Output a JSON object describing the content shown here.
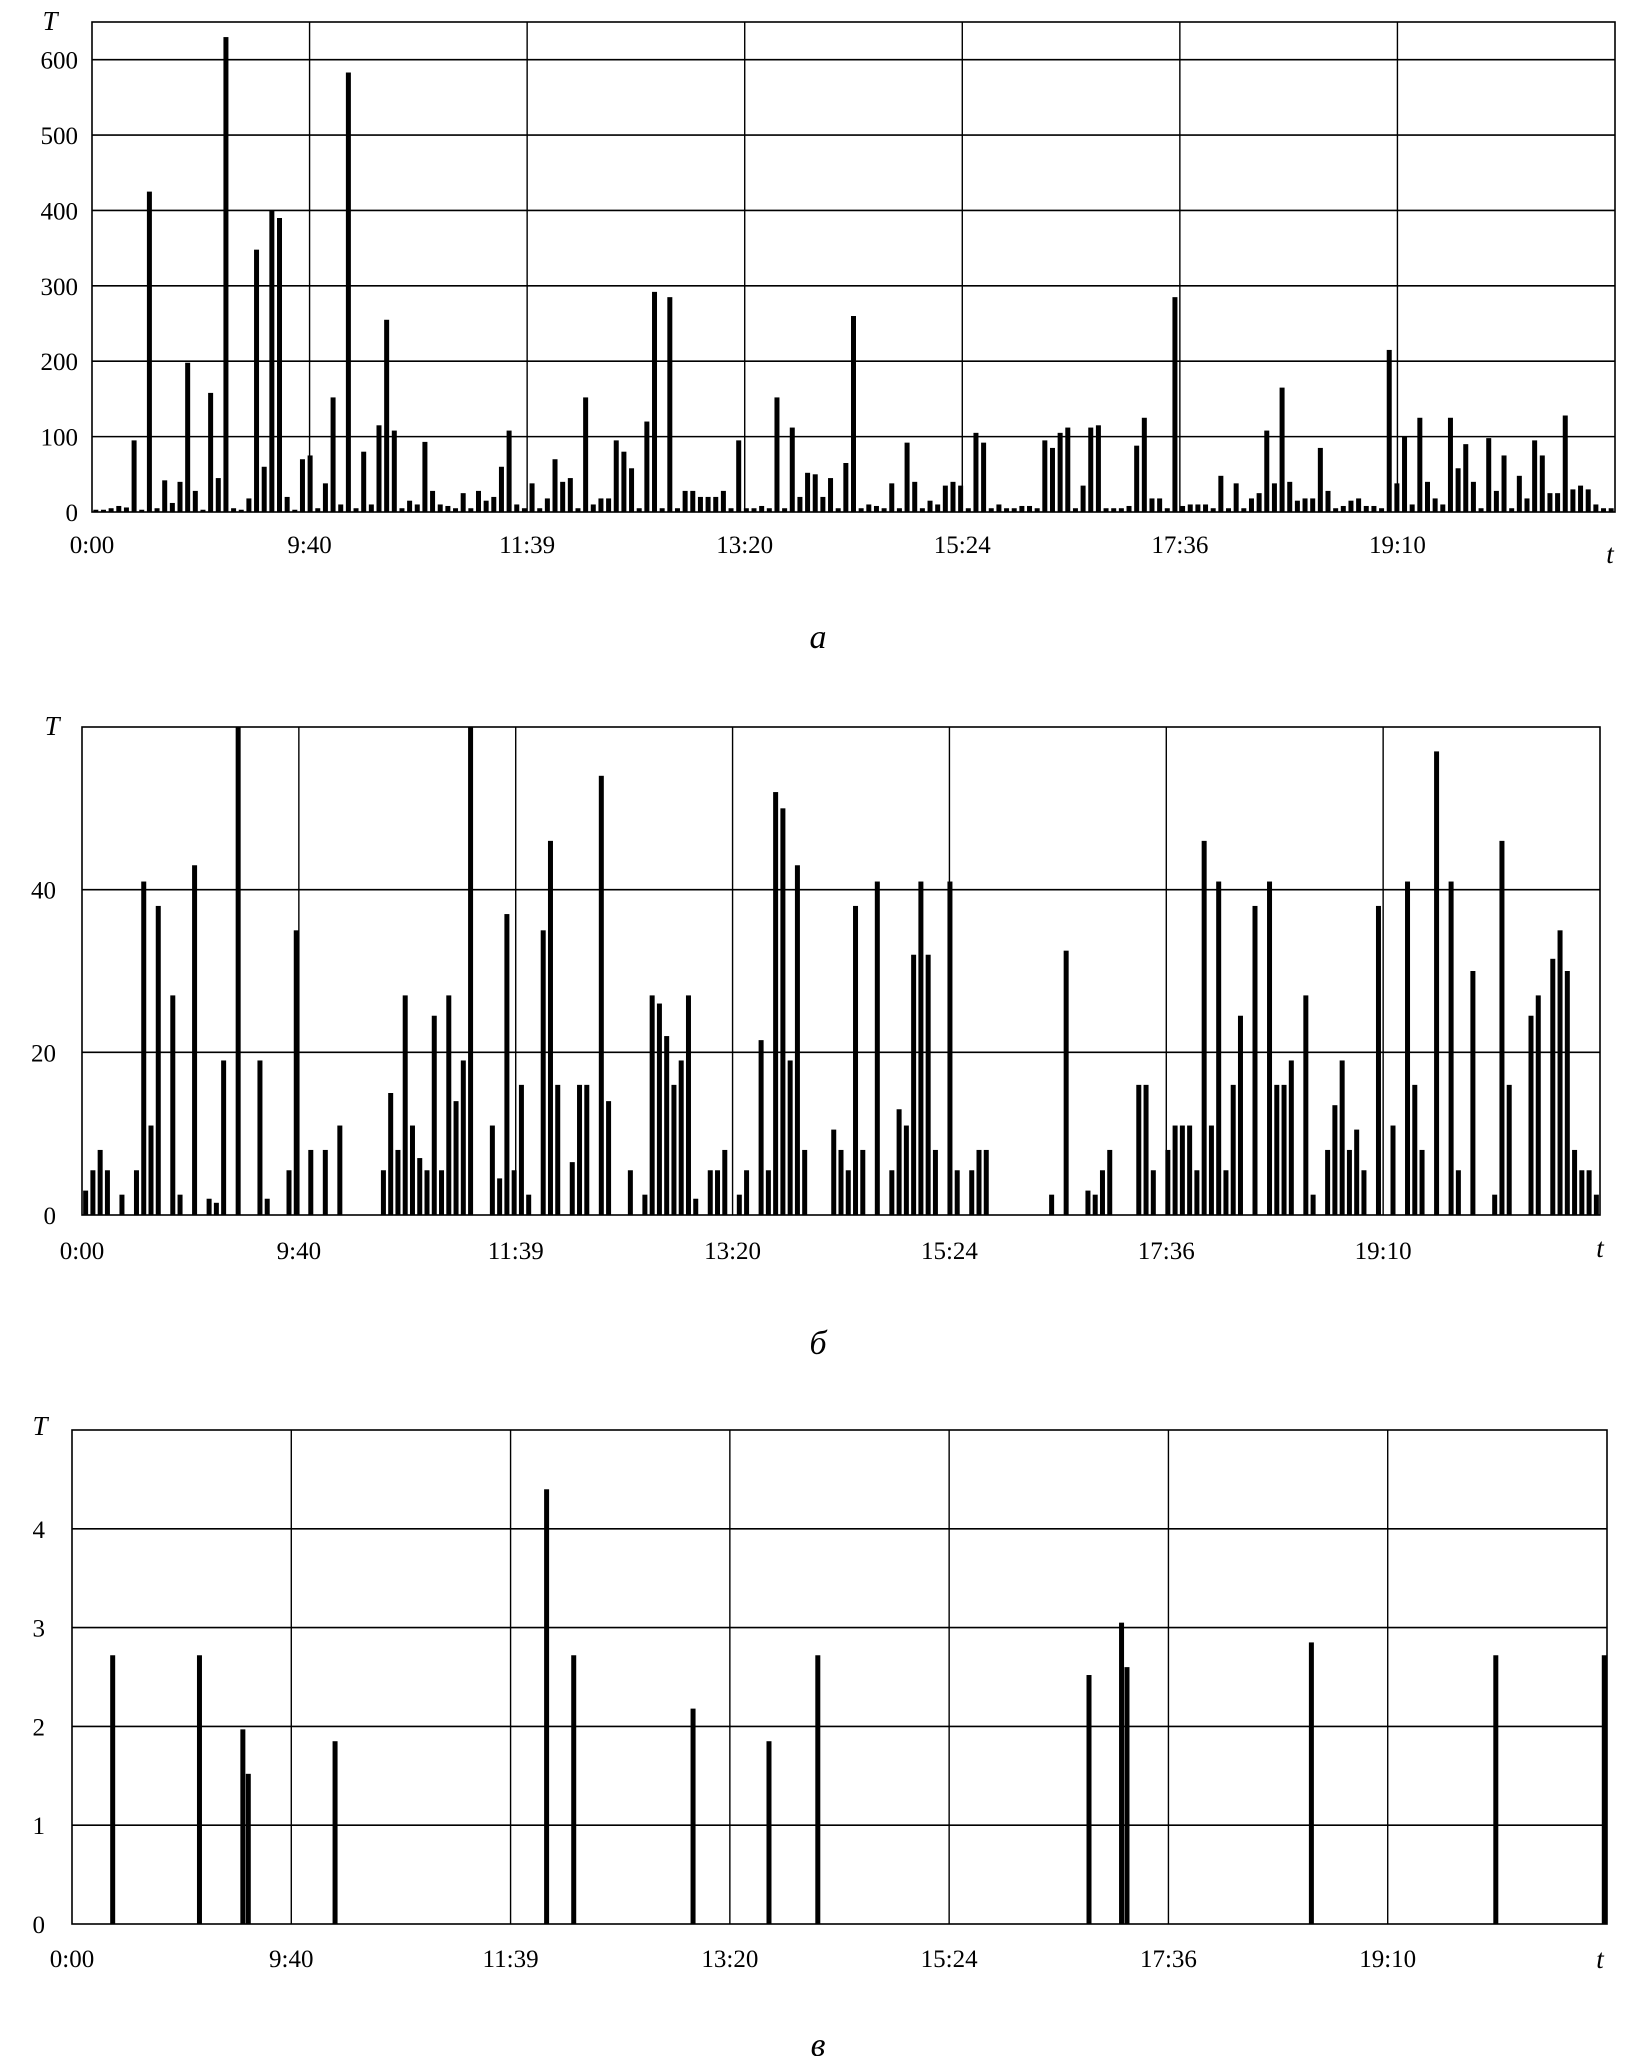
{
  "chart_data": [
    {
      "type": "bar",
      "caption": "а",
      "ylabel": "T",
      "xlabel": "t",
      "ylim": [
        0,
        650
      ],
      "yticks": [
        0,
        100,
        200,
        300,
        400,
        500,
        600
      ],
      "xticks": [
        "0:00",
        "9:40",
        "11:39",
        "13:20",
        "15:24",
        "17:36",
        "19:10"
      ],
      "grid": true,
      "values": [
        3,
        3,
        5,
        8,
        6,
        95,
        3,
        425,
        5,
        42,
        12,
        40,
        198,
        28,
        3,
        158,
        45,
        630,
        5,
        3,
        18,
        348,
        60,
        400,
        390,
        20,
        3,
        70,
        75,
        5,
        38,
        152,
        10,
        583,
        5,
        80,
        10,
        115,
        255,
        108,
        5,
        15,
        10,
        93,
        28,
        10,
        8,
        5,
        25,
        5,
        28,
        15,
        20,
        60,
        108,
        10,
        5,
        38,
        5,
        18,
        70,
        40,
        45,
        5,
        152,
        10,
        18,
        18,
        95,
        80,
        58,
        5,
        120,
        292,
        5,
        285,
        5,
        28,
        28,
        20,
        20,
        20,
        28,
        5,
        95,
        5,
        5,
        8,
        5,
        152,
        5,
        112,
        20,
        52,
        50,
        20,
        45,
        5,
        65,
        260,
        5,
        10,
        8,
        5,
        38,
        5,
        92,
        40,
        5,
        15,
        10,
        35,
        40,
        35,
        5,
        105,
        92,
        5,
        10,
        5,
        5,
        8,
        8,
        5,
        95,
        85,
        105,
        112,
        5,
        35,
        112,
        115,
        5,
        5,
        5,
        8,
        88,
        125,
        18,
        18,
        5,
        285,
        8,
        10,
        10,
        10,
        5,
        48,
        5,
        38,
        5,
        18,
        25,
        108,
        38,
        165,
        40,
        15,
        18,
        18,
        85,
        28,
        5,
        8,
        15,
        18,
        8,
        8,
        5,
        215,
        38,
        100,
        10,
        125,
        40,
        18,
        10,
        125,
        58,
        90,
        40,
        5,
        98,
        28,
        75,
        5,
        48,
        18,
        95,
        75,
        25,
        25,
        128,
        30,
        35,
        30,
        10,
        5,
        5
      ]
    },
    {
      "type": "bar",
      "caption": "б",
      "ylabel": "T",
      "xlabel": "t",
      "ylim": [
        0,
        60
      ],
      "yticks": [
        0,
        20,
        40
      ],
      "xticks": [
        "0:00",
        "9:40",
        "11:39",
        "13:20",
        "15:24",
        "17:36",
        "19:10"
      ],
      "grid": true,
      "values": [
        3,
        5.5,
        8,
        5.5,
        0,
        2.5,
        0,
        5.5,
        41,
        11,
        38,
        0,
        27,
        2.5,
        0,
        43,
        0,
        2,
        1.5,
        19,
        0,
        60,
        0,
        0,
        19,
        2,
        0,
        0,
        5.5,
        35,
        0,
        8,
        0,
        8,
        0,
        11,
        0,
        0,
        0,
        0,
        0,
        5.5,
        15,
        8,
        27,
        11,
        7,
        5.5,
        24.5,
        5.5,
        27,
        14,
        19,
        60,
        0,
        0,
        11,
        4.5,
        37,
        5.5,
        16,
        2.5,
        0,
        35,
        46,
        16,
        0,
        6.5,
        16,
        16,
        0,
        54,
        14,
        0,
        0,
        5.5,
        0,
        2.5,
        27,
        26,
        22,
        16,
        19,
        27,
        2,
        0,
        5.5,
        5.5,
        8,
        0,
        2.5,
        5.5,
        0,
        21.5,
        5.5,
        52,
        50,
        19,
        43,
        8,
        0,
        0,
        0,
        10.5,
        8,
        5.5,
        38,
        8,
        0,
        41,
        0,
        5.5,
        13,
        11,
        32,
        41,
        32,
        8,
        0,
        41,
        5.5,
        0,
        5.5,
        8,
        8,
        0,
        0,
        0,
        0,
        0,
        0,
        0,
        0,
        2.5,
        0,
        32.5,
        0,
        0,
        3,
        2.5,
        5.5,
        8,
        0,
        0,
        0,
        16,
        16,
        5.5,
        0,
        8,
        11,
        11,
        11,
        5.5,
        46,
        11,
        41,
        5.5,
        16,
        24.5,
        0,
        38,
        0,
        41,
        16,
        16,
        19,
        0,
        27,
        2.5,
        0,
        8,
        13.5,
        19,
        8,
        10.5,
        5.5,
        0,
        38,
        0,
        11,
        0,
        41,
        16,
        8,
        0,
        57,
        0,
        41,
        5.5,
        0,
        30,
        0,
        0,
        2.5,
        46,
        16,
        0,
        0,
        24.5,
        27,
        0,
        31.5,
        35,
        30,
        8,
        5.5,
        5.5,
        2.5
      ]
    },
    {
      "type": "bar",
      "caption": "в",
      "ylabel": "T",
      "xlabel": "t",
      "ylim": [
        0,
        5
      ],
      "yticks": [
        0,
        1,
        2,
        3,
        4
      ],
      "xticks": [
        "0:00",
        "9:40",
        "11:39",
        "13:20",
        "15:24",
        "17:36",
        "19:10"
      ],
      "grid": true,
      "values": [
        0,
        0,
        0,
        0,
        0,
        0,
        0,
        2.72,
        0,
        0,
        0,
        0,
        0,
        0,
        0,
        0,
        0,
        0,
        0,
        0,
        0,
        0,
        0,
        2.72,
        0,
        0,
        0,
        0,
        0,
        0,
        0,
        1.97,
        1.52,
        0,
        0,
        0,
        0,
        0,
        0,
        0,
        0,
        0,
        0,
        0,
        0,
        0,
        0,
        0,
        1.85,
        0,
        0,
        0,
        0,
        0,
        0,
        0,
        0,
        0,
        0,
        0,
        0,
        0,
        0,
        0,
        0,
        0,
        0,
        0,
        0,
        0,
        0,
        0,
        0,
        0,
        0,
        0,
        0,
        0,
        0,
        0,
        0,
        0,
        0,
        0,
        0,
        0,
        0,
        4.4,
        0,
        0,
        0,
        0,
        2.72,
        0,
        0,
        0,
        0,
        0,
        0,
        0,
        0,
        0,
        0,
        0,
        0,
        0,
        0,
        0,
        0,
        0,
        0,
        0,
        0,
        0,
        2.18,
        0,
        0,
        0,
        0,
        0,
        0,
        0,
        0,
        0,
        0,
        0,
        0,
        0,
        1.85,
        0,
        0,
        0,
        0,
        0,
        0,
        0,
        0,
        2.72,
        0,
        0,
        0,
        0,
        0,
        0,
        0,
        0,
        0,
        0,
        0,
        0,
        0,
        0,
        0,
        0,
        0,
        0,
        0,
        0,
        0,
        0,
        0,
        0,
        0,
        0,
        0,
        0,
        0,
        0,
        0,
        0,
        0,
        0,
        0,
        0,
        0,
        0,
        0,
        0,
        0,
        0,
        0,
        0,
        0,
        0,
        0,
        0,
        0,
        2.52,
        0,
        0,
        0,
        0,
        0,
        3.05,
        2.6,
        0,
        0,
        0,
        0,
        0,
        0,
        0,
        0,
        0,
        0,
        0,
        0,
        0,
        0,
        0,
        0,
        0,
        0,
        0,
        0,
        0,
        0,
        0,
        0,
        0,
        0,
        0,
        0,
        0,
        0,
        0,
        0,
        0,
        2.85,
        0,
        0,
        0,
        0,
        0,
        0,
        0,
        0,
        0,
        0,
        0,
        0,
        0,
        0,
        0,
        0,
        0,
        0,
        0,
        0,
        0,
        0,
        0,
        0,
        0,
        0,
        0,
        0,
        0,
        0,
        0,
        0,
        0,
        2.72,
        0,
        0,
        0,
        0,
        0,
        0,
        0,
        0,
        0,
        0,
        0,
        0,
        0,
        0,
        0,
        0,
        0,
        0,
        0,
        2.72
      ]
    }
  ]
}
